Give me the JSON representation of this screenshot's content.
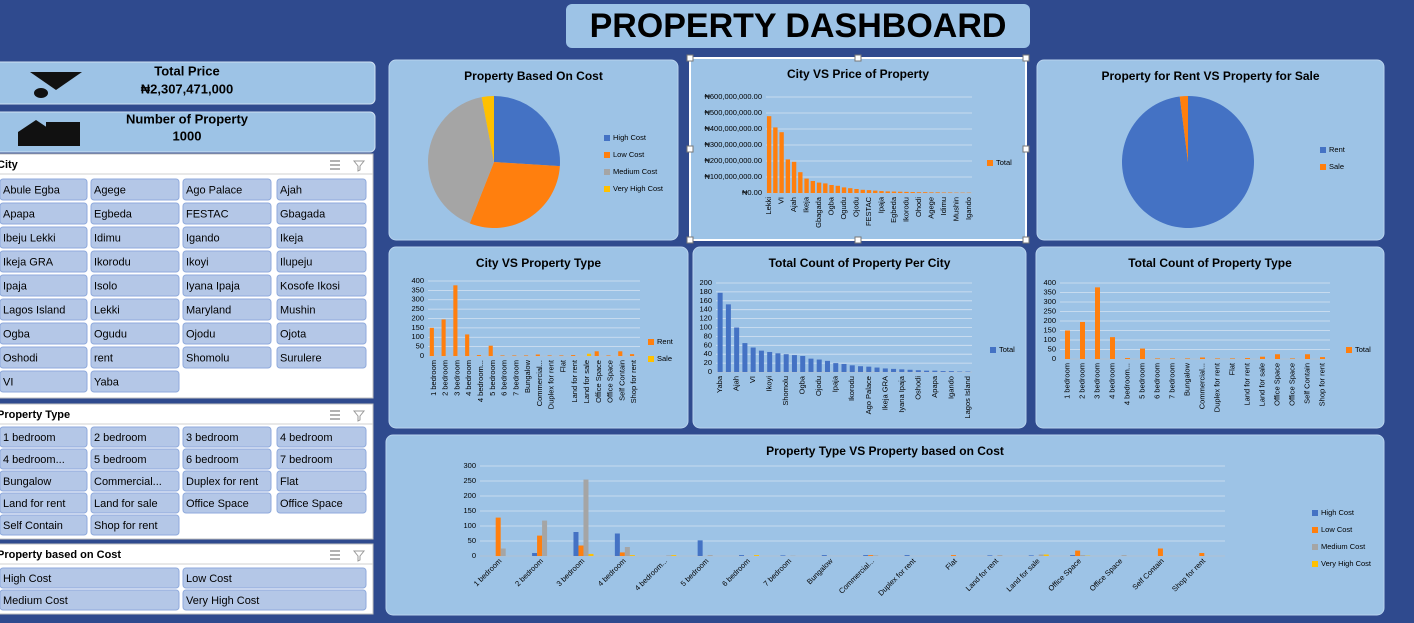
{
  "header": {
    "title": "PROPERTY DASHBOARD"
  },
  "kpis": [
    {
      "label": "Total Price",
      "value": "₦2,307,471,000"
    },
    {
      "label": "Number of Property",
      "value": "1000"
    }
  ],
  "slicers": [
    {
      "title": "City",
      "items": [
        "Abule Egba",
        "Agege",
        "Ago Palace",
        "Ajah",
        "Apapa",
        "Egbeda",
        "FESTAC",
        "Gbagada",
        "Ibeju Lekki",
        "Idimu",
        "Igando",
        "Ikeja",
        "Ikeja GRA",
        "Ikorodu",
        "Ikoyi",
        "Ilupeju",
        "Ipaja",
        "Isolo",
        "Iyana Ipaja",
        "Kosofe Ikosi",
        "Lagos Island",
        "Lekki",
        "Maryland",
        "Mushin",
        "Ogba",
        "Ogudu",
        "Ojodu",
        "Ojota",
        "Oshodi",
        "rent",
        "Shomolu",
        "Surulere",
        "VI",
        "Yaba"
      ]
    },
    {
      "title": "Property Type",
      "items": [
        "1 bedroom",
        "2 bedroom",
        "3 bedroom",
        "4 bedroom",
        "4 bedroom...",
        "5 bedroom",
        "6 bedroom",
        "7 bedroom",
        "Bungalow",
        "Commercial...",
        "Duplex for rent",
        "Flat",
        "Land for rent",
        "Land for sale",
        "Office Space",
        "Office Space",
        "Self Contain",
        "Shop for rent"
      ]
    },
    {
      "title": "Property based on Cost",
      "items": [
        "High Cost",
        "Low Cost",
        "Medium Cost",
        "Very High Cost"
      ]
    }
  ],
  "chart_data": [
    {
      "type": "pie",
      "title": "Property Based On Cost",
      "categories": [
        "High Cost",
        "Low Cost",
        "Medium Cost",
        "Very High Cost"
      ],
      "values": [
        26,
        30,
        41,
        3
      ],
      "colors": [
        "#4472c4",
        "#ff7f0e",
        "#a5a5a5",
        "#ffc000"
      ],
      "legend": "right"
    },
    {
      "type": "bar",
      "title": "City VS Price of Property",
      "categories": [
        "Lekki",
        null,
        "VI",
        null,
        "Ajah",
        null,
        "Ikeja",
        null,
        "Gbagada",
        null,
        "Ogba",
        null,
        "Ogudu",
        null,
        "Ojodu",
        null,
        "FESTAC",
        null,
        "Ipaja",
        null,
        "Egbeda",
        null,
        "Ikorodu",
        null,
        "Ohodi",
        null,
        "Agege",
        null,
        "Idimu",
        null,
        "Mushin",
        null,
        "Igando"
      ],
      "series": [
        {
          "name": "Total",
          "color": "#ff7f0e",
          "values": [
            480000000,
            410000000,
            380000000,
            210000000,
            195000000,
            130000000,
            90000000,
            75000000,
            65000000,
            60000000,
            50000000,
            45000000,
            35000000,
            30000000,
            25000000,
            20000000,
            18000000,
            15000000,
            12000000,
            10000000,
            9000000,
            8000000,
            7000000,
            6000000,
            5000000,
            5000000,
            4000000,
            4000000,
            3000000,
            3000000,
            2000000,
            2000000,
            2000000
          ]
        }
      ],
      "ylim": [
        0,
        600000000
      ],
      "yticks": [
        {
          "value": 0,
          "label": "₦0.00"
        },
        {
          "value": 100000000,
          "label": "₦100,000,000.00"
        },
        {
          "value": 200000000,
          "label": "₦200,000,000.00"
        },
        {
          "value": 300000000,
          "label": "₦300,000,000.00"
        },
        {
          "value": 400000000,
          "label": "₦400,000,000.00"
        },
        {
          "value": 500000000,
          "label": "₦500,000,000.00"
        },
        {
          "value": 600000000,
          "label": "₦600,000,000.00"
        }
      ],
      "grid": true,
      "legend": "right"
    },
    {
      "type": "pie",
      "title": "Property for Rent VS Property for Sale",
      "categories": [
        "Rent",
        "Sale"
      ],
      "values": [
        98,
        2
      ],
      "colors": [
        "#4472c4",
        "#ff7f0e"
      ],
      "legend": "right"
    },
    {
      "type": "bar",
      "title": "City VS Property Type",
      "categories": [
        "1 bedroom",
        "2 bedroom",
        "3 bedroom",
        "4 bedroom",
        "4 bedroom...",
        "5 bedroom",
        "6 bedroom",
        "7 bedroom",
        "Bungalow",
        "Commercial...",
        "Duplex for rent",
        "Flat",
        "Land for rent",
        "Land for sale",
        "Office Space",
        "Office Space",
        "Self Contain",
        "Shop for rent"
      ],
      "series": [
        {
          "name": "Rent",
          "color": "#ff7f0e",
          "values": [
            150,
            195,
            377,
            115,
            5,
            55,
            3,
            3,
            3,
            8,
            3,
            3,
            5,
            0,
            25,
            3,
            25,
            10
          ]
        },
        {
          "name": "Sale",
          "color": "#ffc000",
          "values": [
            0,
            0,
            0,
            0,
            0,
            0,
            0,
            0,
            0,
            0,
            0,
            0,
            0,
            12,
            0,
            0,
            0,
            0
          ]
        }
      ],
      "ylim": [
        0,
        400
      ],
      "yticks": [
        0,
        50,
        100,
        150,
        200,
        250,
        300,
        350,
        400
      ],
      "grid": true,
      "legend": "right"
    },
    {
      "type": "bar",
      "title": "Total Count of Property Per City",
      "categories": [
        "Yaba",
        null,
        "Ajah",
        null,
        "VI",
        null,
        "Ikoyi",
        null,
        "Shomolu",
        null,
        "Ogba",
        null,
        "Ojodu",
        null,
        "Ipaja",
        null,
        "Ikorodu",
        null,
        "Ago Palace",
        null,
        "Ikeja GRA",
        null,
        "Iyana Ipaja",
        null,
        "Oshodi",
        null,
        "Apapa",
        null,
        "Igando",
        null,
        "Lagos Island"
      ],
      "series": [
        {
          "name": "Total",
          "color": "#4472c4",
          "values": [
            178,
            152,
            100,
            65,
            55,
            48,
            45,
            42,
            40,
            38,
            36,
            30,
            28,
            25,
            20,
            18,
            15,
            13,
            12,
            10,
            8,
            7,
            6,
            5,
            4,
            3,
            3,
            2,
            2,
            1,
            1
          ]
        }
      ],
      "ylim": [
        0,
        200
      ],
      "yticks": [
        0,
        20,
        40,
        60,
        80,
        100,
        120,
        140,
        160,
        180,
        200
      ],
      "grid": true,
      "legend": "right"
    },
    {
      "type": "bar",
      "title": "Total Count of Property Type",
      "categories": [
        "1 bedroom",
        "2 bedroom",
        "3 bedroom",
        "4 bedroom",
        "4 bedroom...",
        "5 bedroom",
        "6 bedroom",
        "7 bedroom",
        "Bungalow",
        "Commercial...",
        "Duplex for rent",
        "Flat",
        "Land for rent",
        "Land for sale",
        "Office Space",
        "Office Space",
        "Self Contain",
        "Shop for rent"
      ],
      "series": [
        {
          "name": "Total",
          "color": "#ff7f0e",
          "values": [
            150,
            195,
            377,
            115,
            5,
            55,
            3,
            3,
            3,
            8,
            3,
            3,
            5,
            12,
            25,
            3,
            25,
            10
          ]
        }
      ],
      "ylim": [
        0,
        400
      ],
      "yticks": [
        0,
        50,
        100,
        150,
        200,
        250,
        300,
        350,
        400
      ],
      "grid": true,
      "legend": "right"
    },
    {
      "type": "bar",
      "title": "Property Type VS Property based on Cost",
      "categories": [
        "1 bedroom",
        "2 bedroom",
        "3 bedroom",
        "4 bedroom",
        "4 bedroom...",
        "5 bedroom",
        "6 bedroom",
        "7 bedroom",
        "Bungalow",
        "Commercial...",
        "Duplex for rent",
        "Flat",
        "Land for rent",
        "Land for sale",
        "Office Space",
        "Office Space",
        "Self Contain",
        "Shop for rent"
      ],
      "series": [
        {
          "name": "High Cost",
          "color": "#4472c4",
          "values": [
            0,
            10,
            80,
            75,
            0,
            52,
            3,
            2,
            3,
            3,
            3,
            0,
            2,
            2,
            3,
            0,
            0,
            0
          ]
        },
        {
          "name": "Low Cost",
          "color": "#ff7f0e",
          "values": [
            128,
            68,
            35,
            12,
            0,
            0,
            0,
            0,
            0,
            3,
            0,
            3,
            0,
            0,
            18,
            0,
            25,
            10
          ]
        },
        {
          "name": "Medium Cost",
          "color": "#a5a5a5",
          "values": [
            25,
            118,
            255,
            30,
            2,
            3,
            0,
            1,
            0,
            2,
            0,
            0,
            3,
            5,
            3,
            3,
            0,
            0
          ]
        },
        {
          "name": "Very High Cost",
          "color": "#ffc000",
          "values": [
            0,
            0,
            7,
            3,
            3,
            0,
            3,
            0,
            0,
            0,
            0,
            0,
            0,
            5,
            1,
            0,
            0,
            0
          ]
        }
      ],
      "ylim": [
        0,
        300
      ],
      "yticks": [
        0,
        50,
        100,
        150,
        200,
        250,
        300
      ],
      "grid": true,
      "legend": "right"
    }
  ]
}
